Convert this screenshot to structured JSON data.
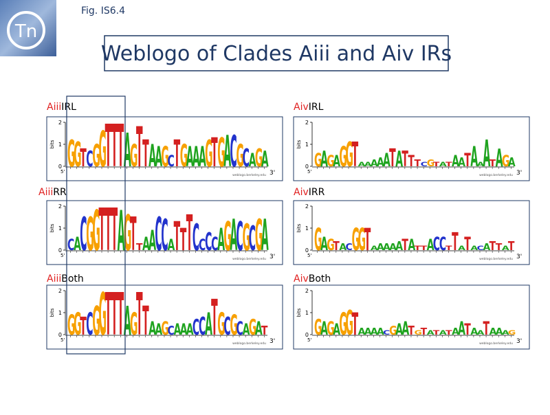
{
  "header": {
    "figure": "Fig. IS6.4",
    "logo": "Tn",
    "title": "Weblogo of Clades Aiii and Aiv IRs"
  },
  "logo_axis": {
    "label": "bits",
    "ticks": [
      2,
      1,
      0
    ],
    "start": "5'",
    "end": "3'",
    "credit": "weblogo.berkeley.edu"
  },
  "panels": [
    {
      "clade": "Aiii",
      "region": "IRL",
      "sequence": "GGTCGGTTTAGTTAAGCTGAAAGTGACGCAGA",
      "heights": [
        1.2,
        1.1,
        0.8,
        0.7,
        1.0,
        1.6,
        1.9,
        1.9,
        1.9,
        1.5,
        1.0,
        1.8,
        1.2,
        1.0,
        0.9,
        0.9,
        0.5,
        1.2,
        1.0,
        0.9,
        0.9,
        0.9,
        1.2,
        1.3,
        1.3,
        1.4,
        1.4,
        1.0,
        0.8,
        0.6,
        0.8,
        0.7
      ]
    },
    {
      "clade": "Aiv",
      "region": "IRL",
      "sequence": "GAGAGGTAAAAATATTTCGTATAATAAATAGA",
      "heights": [
        0.6,
        0.7,
        0.5,
        0.5,
        0.9,
        1.1,
        1.1,
        0.2,
        0.2,
        0.3,
        0.4,
        0.6,
        0.8,
        0.7,
        0.7,
        0.5,
        0.3,
        0.2,
        0.3,
        0.2,
        0.2,
        0.2,
        0.5,
        0.4,
        0.6,
        0.9,
        0.2,
        1.2,
        0.3,
        0.8,
        0.5,
        0.4
      ]
    },
    {
      "clade": "Aiii",
      "region": "RR",
      "sequence": "CACGGTTTAGTTAACCATTTCCCCAGACGCGA",
      "heights": [
        0.5,
        0.6,
        1.5,
        1.5,
        1.8,
        1.9,
        1.9,
        1.9,
        1.8,
        1.6,
        1.5,
        0.3,
        0.6,
        0.9,
        1.5,
        1.4,
        0.5,
        1.3,
        1.0,
        1.6,
        1.2,
        0.5,
        0.8,
        0.6,
        1.0,
        1.3,
        1.4,
        1.3,
        1.2,
        1.1,
        1.4,
        1.4
      ]
    },
    {
      "clade": "Aiv",
      "region": "IRR",
      "sequence": "GAGTACGGTAAAAATATTACCTTATACATTAT",
      "heights": [
        1.0,
        0.6,
        0.5,
        0.4,
        0.3,
        0.3,
        1.0,
        1.0,
        1.0,
        0.2,
        0.3,
        0.3,
        0.3,
        0.4,
        0.5,
        0.5,
        0.2,
        0.2,
        0.5,
        0.6,
        0.6,
        0.2,
        0.8,
        0.2,
        0.6,
        0.2,
        0.2,
        0.3,
        0.4,
        0.3,
        0.2,
        0.4
      ]
    },
    {
      "clade": "Aiii",
      "region": "Both",
      "sequence": "GGTCGGTTTAGTTAAGCAAACCATGCGCAGAT",
      "heights": [
        0.9,
        1.0,
        0.8,
        1.0,
        1.3,
        1.9,
        1.9,
        1.9,
        1.9,
        1.3,
        1.0,
        1.9,
        1.3,
        0.6,
        0.5,
        0.6,
        0.4,
        0.5,
        0.5,
        0.5,
        0.7,
        0.8,
        1.0,
        1.6,
        1.0,
        0.8,
        0.9,
        0.6,
        0.5,
        0.7,
        0.6,
        0.4
      ]
    },
    {
      "clade": "Aiv",
      "region": "Both",
      "sequence": "GAGAGGTAAAACGAATGTATATAATAATAAAG",
      "heights": [
        0.7,
        0.6,
        0.6,
        0.5,
        1.0,
        1.1,
        1.0,
        0.3,
        0.3,
        0.3,
        0.3,
        0.2,
        0.4,
        0.5,
        0.6,
        0.4,
        0.2,
        0.3,
        0.2,
        0.2,
        0.2,
        0.2,
        0.3,
        0.6,
        0.5,
        0.3,
        0.2,
        0.6,
        0.3,
        0.3,
        0.2,
        0.2
      ]
    }
  ]
}
